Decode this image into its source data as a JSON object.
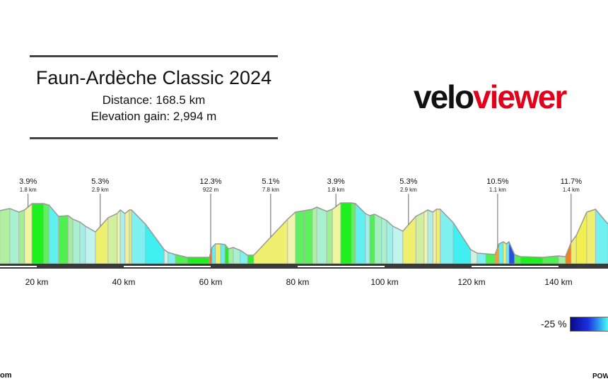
{
  "title": "Faun-Ardèche Classic 2024",
  "distance": "Distance: 168.5 km",
  "elevation_gain": "Elevation gain: 2,994 m",
  "logo": {
    "part1": "velo",
    "part2": "viewer",
    "colors": {
      "part1": "#111111",
      "part2": "#e3001b"
    }
  },
  "legend": {
    "min_label": "-25 %"
  },
  "footer": {
    "left": "om",
    "right": "POW"
  },
  "chart_data": {
    "type": "area",
    "xlabel": "",
    "ylabel": "",
    "x_ticks": [
      {
        "km": 20,
        "label": "20 km"
      },
      {
        "km": 40,
        "label": "40 km"
      },
      {
        "km": 60,
        "label": "60 km"
      },
      {
        "km": 80,
        "label": "80 km"
      },
      {
        "km": 100,
        "label": "100 km"
      },
      {
        "km": 120,
        "label": "120 km"
      },
      {
        "km": 140,
        "label": "140 km"
      }
    ],
    "profile": [
      [
        11.5,
        550,
        "#5ef05e"
      ],
      [
        13.8,
        568,
        "#b0f0a0"
      ],
      [
        15.9,
        538,
        "#a8f0d0"
      ],
      [
        17.2,
        556,
        "#a0f090"
      ],
      [
        18.9,
        610,
        "#f0f5a0"
      ],
      [
        21.6,
        610,
        "#1ef01e"
      ],
      [
        22.8,
        598,
        "#60f060"
      ],
      [
        25.0,
        502,
        "#60f0f0"
      ],
      [
        27.2,
        508,
        "#50f050"
      ],
      [
        28.3,
        478,
        "#a0f0a0"
      ],
      [
        29.9,
        454,
        "#a8f0d0"
      ],
      [
        31.2,
        418,
        "#a0f0e8"
      ],
      [
        33.5,
        370,
        "#bff5ee"
      ],
      [
        36.4,
        490,
        "#f0f070"
      ],
      [
        38.5,
        526,
        "#d0f0a0"
      ],
      [
        39.2,
        556,
        "#f0f5b0"
      ],
      [
        40.3,
        526,
        "#a8f0e8"
      ],
      [
        41.3,
        556,
        "#f0f0a0"
      ],
      [
        41.8,
        556,
        "#f0f070"
      ],
      [
        45.0,
        436,
        "#80f0f0"
      ],
      [
        49.3,
        220,
        "#40f0f0"
      ],
      [
        50.2,
        196,
        "#d0f0e0"
      ],
      [
        51.9,
        178,
        "#80f0f0"
      ],
      [
        54.6,
        154,
        "#50f050"
      ],
      [
        59.7,
        154,
        "#1ef01e"
      ],
      [
        60.3,
        238,
        "#f07020"
      ],
      [
        61.1,
        268,
        "#60f0f0"
      ],
      [
        62.3,
        268,
        "#f0f070"
      ],
      [
        63.3,
        262,
        "#60f0f0"
      ],
      [
        64.1,
        226,
        "#1ef01e"
      ],
      [
        65.2,
        238,
        "#a0f0a0"
      ],
      [
        66.8,
        214,
        "#a8f0d0"
      ],
      [
        68.5,
        172,
        "#80f0f0"
      ],
      [
        69.9,
        172,
        "#30f030"
      ],
      [
        77.7,
        478,
        "#f0f070"
      ],
      [
        79.5,
        538,
        "#f0f5b0"
      ],
      [
        81.5,
        550,
        "#5ef05e"
      ],
      [
        83.4,
        562,
        "#5ef05e"
      ],
      [
        84.4,
        580,
        "#b0f0a0"
      ],
      [
        86.7,
        544,
        "#a8f0d0"
      ],
      [
        88.0,
        562,
        "#a0f090"
      ],
      [
        89.9,
        616,
        "#f0f5a0"
      ],
      [
        92.4,
        616,
        "#1ef01e"
      ],
      [
        93.3,
        610,
        "#60f060"
      ],
      [
        95.6,
        526,
        "#60f0f0"
      ],
      [
        96.6,
        508,
        "#a0f0e8"
      ],
      [
        97.7,
        520,
        "#50f050"
      ],
      [
        99.3,
        490,
        "#a0f0c0"
      ],
      [
        100.5,
        466,
        "#a8f0d0"
      ],
      [
        101.9,
        418,
        "#a0f0e8"
      ],
      [
        104.2,
        376,
        "#bff5ee"
      ],
      [
        107.2,
        502,
        "#f0f070"
      ],
      [
        109.1,
        538,
        "#d0f0a0"
      ],
      [
        109.9,
        556,
        "#f0f5b0"
      ],
      [
        111.1,
        538,
        "#a8f0e8"
      ],
      [
        111.9,
        562,
        "#f0f0a0"
      ],
      [
        112.8,
        562,
        "#f0f070"
      ],
      [
        115.8,
        448,
        "#80f0f0"
      ],
      [
        119.8,
        220,
        "#40f0f0"
      ],
      [
        121.3,
        190,
        "#d0f0e0"
      ],
      [
        123.3,
        184,
        "#80f0f0"
      ],
      [
        125.4,
        178,
        "#50f050"
      ],
      [
        126.3,
        268,
        "#f0a030"
      ],
      [
        127.3,
        286,
        "#60f0f0"
      ],
      [
        128.0,
        268,
        "#f0f070"
      ],
      [
        128.6,
        286,
        "#60f0f0"
      ],
      [
        129.9,
        178,
        "#2050e0"
      ],
      [
        131.2,
        160,
        "#50f050"
      ],
      [
        136.4,
        154,
        "#1ef01e"
      ],
      [
        140.0,
        166,
        "#50f050"
      ],
      [
        141.6,
        160,
        "#a0f0a0"
      ],
      [
        142.9,
        280,
        "#f08020"
      ],
      [
        144.1,
        340,
        "#f0f070"
      ],
      [
        146.5,
        538,
        "#f0f050"
      ],
      [
        148.5,
        562,
        "#f0f070"
      ],
      [
        151.4,
        436,
        "#70f0f0"
      ]
    ],
    "climbs": [
      {
        "km": 18.0,
        "gradient": "3.9%",
        "length": "1.8 km"
      },
      {
        "km": 34.6,
        "gradient": "5.3%",
        "length": "2.9 km"
      },
      {
        "km": 60.0,
        "gradient": "12.3%",
        "length": "922 m"
      },
      {
        "km": 73.8,
        "gradient": "5.1%",
        "length": "7.8 km"
      },
      {
        "km": 88.8,
        "gradient": "3.9%",
        "length": "1.8 km"
      },
      {
        "km": 105.5,
        "gradient": "5.3%",
        "length": "2.9 km"
      },
      {
        "km": 126.0,
        "gradient": "10.5%",
        "length": "1.1 km"
      },
      {
        "km": 142.9,
        "gradient": "11.7%",
        "length": "1.4 km"
      }
    ]
  }
}
